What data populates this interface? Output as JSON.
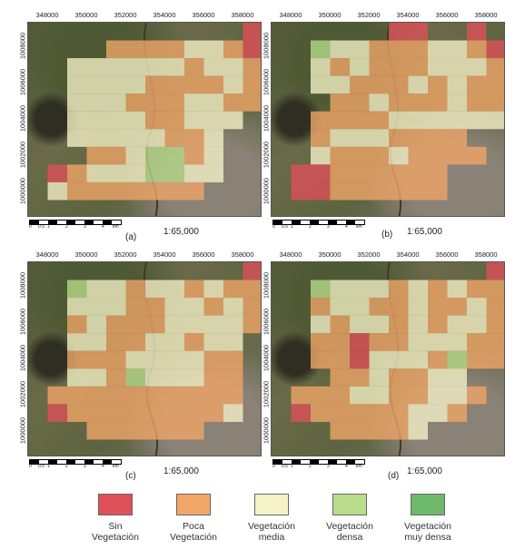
{
  "x_ticks": [
    "348000",
    "350000",
    "352000",
    "354000",
    "356000",
    "358000"
  ],
  "y_ticks": [
    "1008000",
    "1006000",
    "1004000",
    "1002000",
    "1000000"
  ],
  "scale": {
    "ratio": "1:65,000",
    "labels": [
      "0",
      "0.5",
      "1",
      "2",
      "3",
      "4"
    ],
    "unit": "km"
  },
  "colors": {
    "sin": "#e05058",
    "poca": "#f2a668",
    "media": "#f6f2c8",
    "densa": "#b9dd8a",
    "muy_densa": "#6fba6a"
  },
  "legend": [
    {
      "key": "sin",
      "label_line1": "Sin",
      "label_line2": "Vegetación"
    },
    {
      "key": "poca",
      "label_line1": "Poca",
      "label_line2": "Vegetación"
    },
    {
      "key": "media",
      "label_line1": "Vegetación",
      "label_line2": "media"
    },
    {
      "key": "densa",
      "label_line1": "Vegetación",
      "label_line2": "densa"
    },
    {
      "key": "muy_densa",
      "label_line1": "Vegetación",
      "label_line2": "muy densa"
    }
  ],
  "panels": [
    {
      "caption": "(a)",
      "grid": [
        "...........s",
        "....ppppmmps",
        "..mmmmmmpmmp",
        "..mmmmppppmp",
        "..mmmpppmmpp",
        "..mmmmppmmm.",
        "..mmmmmppm..",
        "...ppmddpm..",
        ".spmmmddmm..",
        ".mppppppp...",
        "............"
      ]
    },
    {
      "caption": "(b)",
      "grid": [
        "......ss..s.",
        "..dmmpppmmps",
        "..mpmpppmmmp",
        "..mmpppmpmpp",
        "...ppmpppmpp",
        "..ppppmmmmmm",
        "..pmmmpppp..",
        "..mpppmpppp.",
        ".sspppppp...",
        ".sspppppp...",
        "............"
      ]
    },
    {
      "caption": "(c)",
      "grid": [
        "...........s",
        "..dmmpmmpmpp",
        "..mmmppmmpmp",
        "..pmpppmmmmp",
        "..mmppmmpmm.",
        "..pppmmmmpp.",
        "..mmpdmmmpp.",
        ".pppppppppp.",
        ".sppppppppm.",
        "...pppppp...",
        "............"
      ]
    },
    {
      "caption": "(d)",
      "grid": [
        "...........s",
        "..dmmmpmpmpp",
        "..pmmppmppmp",
        "..mpmmpmpmmp",
        "..ppsppmmmpp",
        "..ppsmmmpdpp",
        "...ppmppmm..",
        ".pppmmppmmp.",
        ".spppppmmp..",
        "...ppppm....",
        "............"
      ]
    }
  ]
}
